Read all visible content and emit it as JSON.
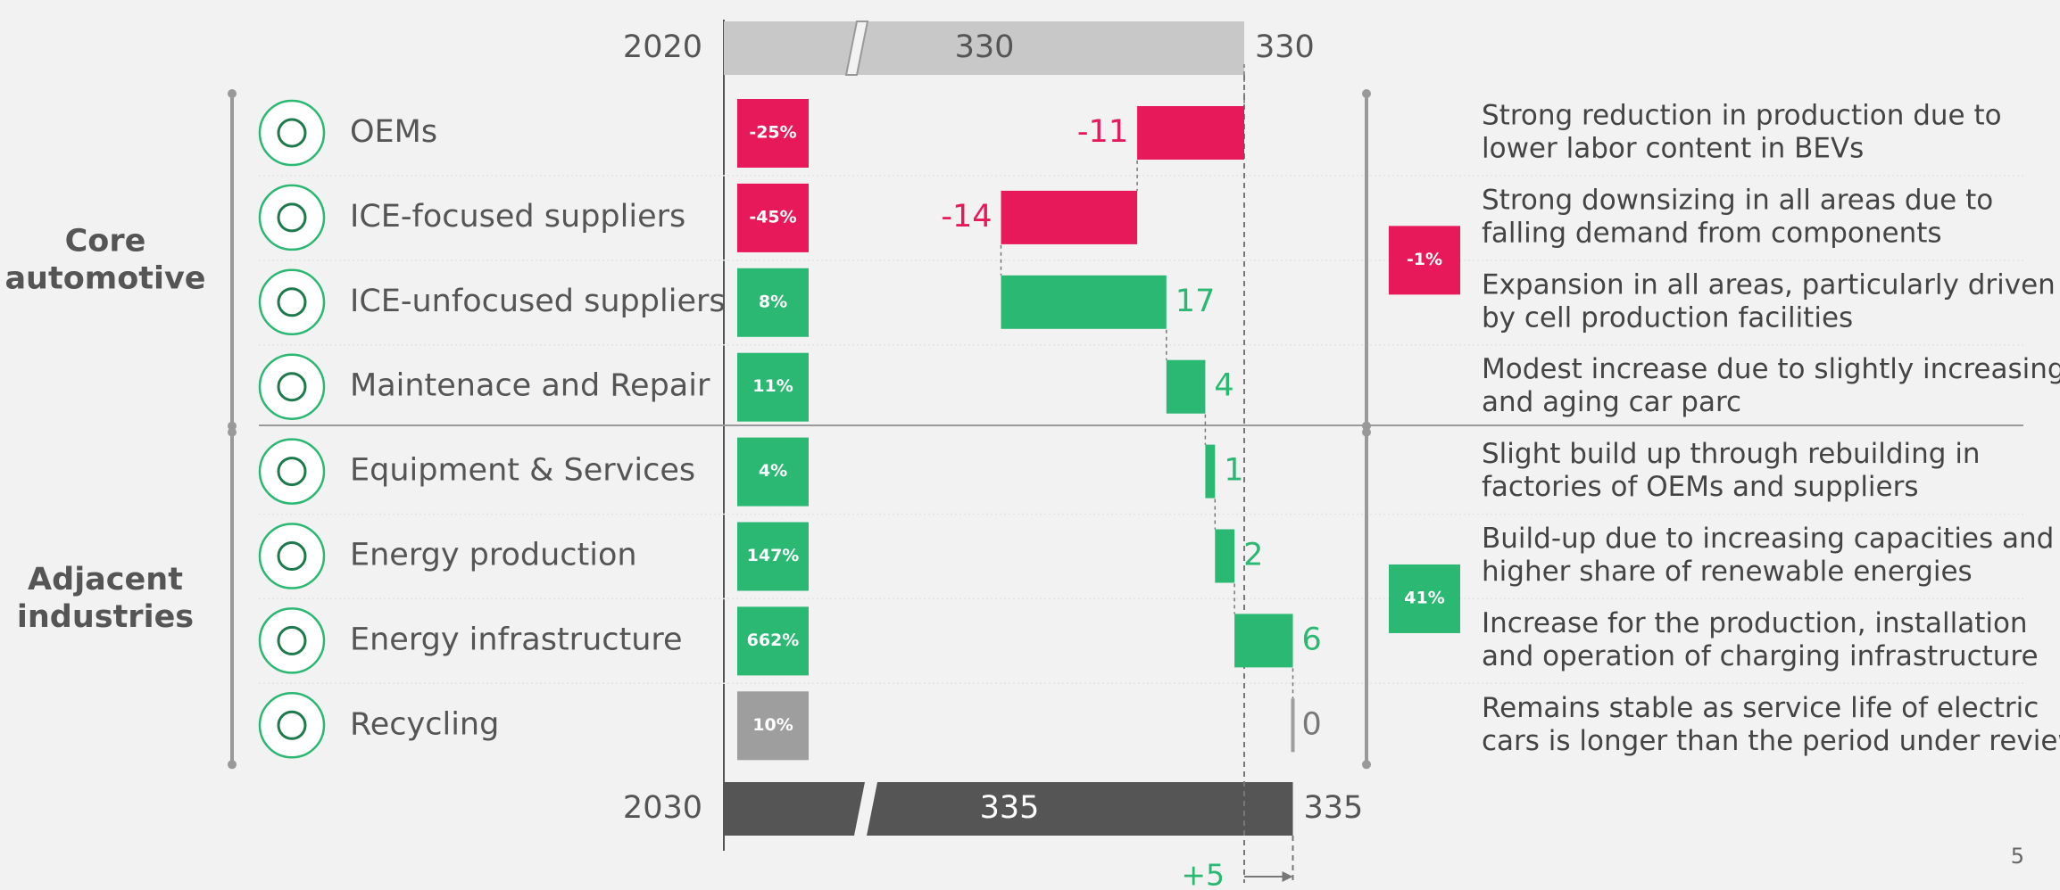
{
  "chart_data": {
    "type": "waterfall",
    "xlim": [
      300,
      340
    ],
    "start": {
      "label": "2020",
      "value": 330,
      "color": "#c8c8c8"
    },
    "end": {
      "label": "2030",
      "value": 335,
      "color": "#555555"
    },
    "categories": [
      "OEMs",
      "ICE-focused suppliers",
      "ICE-unfocused suppliers",
      "Maintenace and Repair",
      "Equipment & Services",
      "Energy production",
      "Energy infrastructure",
      "Recycling"
    ],
    "values": [
      -11,
      -14,
      17,
      4,
      1,
      2,
      6,
      0
    ],
    "colors": [
      "#e8195a",
      "#e8195a",
      "#2ab872",
      "#2ab872",
      "#2ab872",
      "#2ab872",
      "#2ab872",
      "#9e9e9e"
    ],
    "growth_labels": [
      "-25%",
      "-45%",
      "8%",
      "11%",
      "4%",
      "147%",
      "662%",
      "10%"
    ],
    "descriptions": [
      [
        "Strong reduction in production due to",
        "lower labor content in BEVs"
      ],
      [
        "Strong downsizing in all areas due to",
        "falling demand from components"
      ],
      [
        "Expansion in all areas, particularly driven",
        "by cell production facilities"
      ],
      [
        "Modest increase due to slightly increasing",
        "and aging car parc"
      ],
      [
        "Slight build up through rebuilding in",
        "factories of OEMs and suppliers"
      ],
      [
        "Build-up due to increasing capacities and",
        "higher share of renewable energies"
      ],
      [
        "Increase for the production, installation",
        "and operation of charging infrastructure"
      ],
      [
        "Remains stable as service life of electric",
        "cars is longer than the period under review"
      ]
    ],
    "groups": [
      {
        "name": "Core automotive",
        "first": 0,
        "count": 4,
        "growth_label": "-1%",
        "color": "#e8195a"
      },
      {
        "name": "Adjacent industries",
        "first": 4,
        "count": 4,
        "growth_label": "41%",
        "color": "#2ab872"
      }
    ],
    "net_change": {
      "value": 5,
      "label": "+5"
    },
    "page_number": "5"
  }
}
